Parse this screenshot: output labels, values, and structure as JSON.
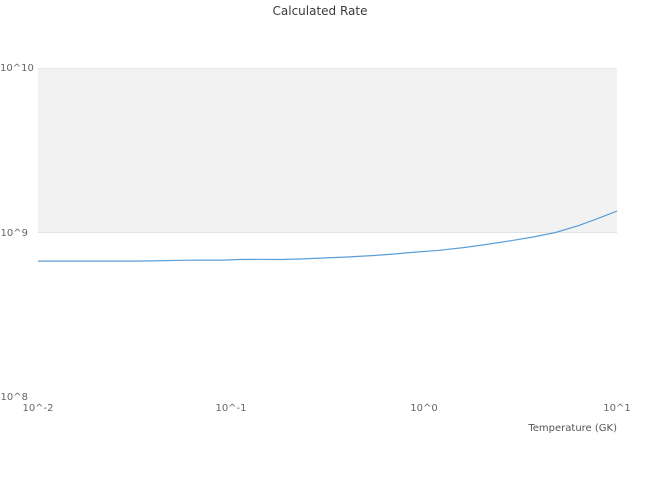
{
  "chart_data": {
    "type": "line",
    "title": "Calculated Rate",
    "xlabel": "Temperature (GK)",
    "ylabel": "",
    "x_scale": "log",
    "y_scale": "log",
    "xlim": [
      0.01,
      10
    ],
    "ylim": [
      100000000,
      10000000000
    ],
    "grid": "horizontal-decade-band",
    "legend": "none",
    "band": {
      "from": 1000000000,
      "to": 10000000000,
      "color": "#f2f2f2"
    },
    "x_ticks": [
      {
        "value": 0.01,
        "label": "10^-2"
      },
      {
        "value": 0.1,
        "label": "10^-1"
      },
      {
        "value": 1,
        "label": "10^0"
      },
      {
        "value": 10,
        "label": "10^1"
      }
    ],
    "y_ticks": [
      {
        "value": 100000000,
        "label": "10^8"
      },
      {
        "value": 1000000000,
        "label": "10^9"
      },
      {
        "value": 10000000000,
        "label": "10^10"
      }
    ],
    "series": [
      {
        "name": "Calculated Rate",
        "color": "#5b9fd8",
        "x": [
          0.01,
          0.013,
          0.017,
          0.022,
          0.03,
          0.04,
          0.055,
          0.07,
          0.09,
          0.11,
          0.14,
          0.18,
          0.23,
          0.3,
          0.4,
          0.55,
          0.7,
          0.9,
          1.2,
          1.6,
          2.1,
          2.8,
          3.7,
          4.8,
          6.3,
          8.0,
          10.0
        ],
        "y": [
          670000000,
          670000000,
          670000000,
          670000000,
          670000000,
          672000000,
          678000000,
          680000000,
          680000000,
          685000000,
          687000000,
          685000000,
          690000000,
          700000000,
          710000000,
          725000000,
          740000000,
          760000000,
          780000000,
          810000000,
          845000000,
          890000000,
          940000000,
          1000000000,
          1100000000,
          1220000000,
          1350000000
        ]
      }
    ]
  }
}
